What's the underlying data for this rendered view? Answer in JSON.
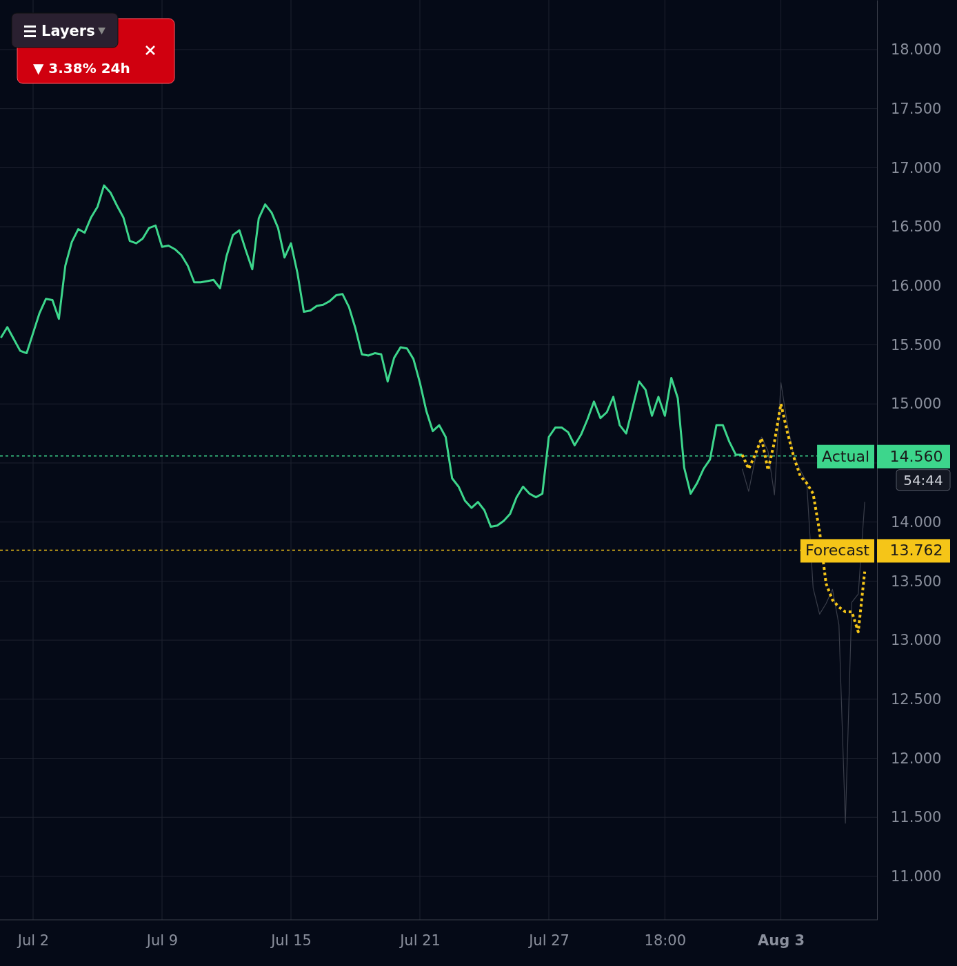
{
  "chart_data": {
    "type": "line",
    "categories": [
      null,
      null,
      null,
      null,
      null,
      "Jul 2",
      null,
      null,
      null,
      null,
      null,
      null,
      null,
      null,
      null,
      null,
      null,
      null,
      null,
      null,
      null,
      null,
      null,
      null,
      null,
      "Jul 9",
      null,
      null,
      null,
      null,
      null,
      null,
      null,
      null,
      null,
      null,
      null,
      null,
      null,
      null,
      null,
      null,
      null,
      null,
      null,
      "Jul 15",
      null,
      null,
      null,
      null,
      null,
      null,
      null,
      null,
      null,
      null,
      null,
      null,
      null,
      null,
      null,
      null,
      null,
      null,
      null,
      "Jul 21",
      null,
      null,
      null,
      null,
      null,
      null,
      null,
      null,
      null,
      null,
      null,
      null,
      null,
      null,
      null,
      null,
      null,
      null,
      null,
      "Jul 27",
      null,
      null,
      null,
      null,
      null,
      null,
      null,
      null,
      null,
      null,
      null,
      null,
      null,
      null,
      null,
      null,
      null,
      "18:00",
      null,
      null,
      null,
      null,
      null,
      null,
      null,
      null,
      null,
      null,
      null,
      null,
      null,
      null,
      null,
      null,
      null,
      "Aug 3",
      null,
      null,
      null,
      null,
      null,
      null,
      null,
      null,
      null,
      null,
      null,
      null,
      null,
      null
    ],
    "ylim": [
      10.632,
      18.42
    ],
    "yticks": [
      {
        "value": 11,
        "label": "11.000"
      },
      {
        "value": 11.5,
        "label": "11.500"
      },
      {
        "value": 12,
        "label": "12.000"
      },
      {
        "value": 12.5,
        "label": "12.500"
      },
      {
        "value": 13,
        "label": "13.000"
      },
      {
        "value": 13.5,
        "label": "13.500"
      },
      {
        "value": 14,
        "label": "14.000"
      },
      {
        "value": 14.5,
        "label": null
      },
      {
        "value": 15,
        "label": "15.000"
      },
      {
        "value": 15.5,
        "label": "15.500"
      },
      {
        "value": 16,
        "label": "16.000"
      },
      {
        "value": 16.5,
        "label": "16.500"
      },
      {
        "value": 17,
        "label": "17.000"
      },
      {
        "value": 17.5,
        "label": "17.500"
      },
      {
        "value": 18,
        "label": "18.000"
      }
    ],
    "grid": true,
    "marker": "none",
    "series": [
      {
        "color": "#3a3e4a",
        "line_style": "solid",
        "values": [
          null,
          null,
          null,
          null,
          null,
          null,
          null,
          null,
          null,
          null,
          null,
          null,
          null,
          null,
          null,
          null,
          null,
          null,
          null,
          null,
          null,
          null,
          null,
          null,
          null,
          null,
          null,
          null,
          null,
          null,
          null,
          null,
          null,
          null,
          null,
          null,
          null,
          null,
          null,
          null,
          null,
          null,
          null,
          null,
          null,
          null,
          null,
          null,
          null,
          null,
          null,
          null,
          null,
          null,
          null,
          null,
          null,
          null,
          null,
          null,
          null,
          null,
          null,
          null,
          null,
          null,
          null,
          null,
          null,
          null,
          null,
          null,
          null,
          null,
          null,
          null,
          null,
          null,
          null,
          null,
          null,
          null,
          null,
          null,
          null,
          null,
          null,
          null,
          null,
          null,
          null,
          null,
          null,
          null,
          null,
          null,
          null,
          null,
          null,
          null,
          null,
          null,
          null,
          null,
          null,
          null,
          null,
          null,
          null,
          null,
          null,
          null,
          null,
          null,
          null,
          14.45,
          14.26,
          14.53,
          14.72,
          14.6,
          14.23,
          15.18,
          14.83,
          14.56,
          14.44,
          14.34,
          13.44,
          13.22,
          13.31,
          13.43,
          13.13,
          11.45,
          13.32,
          13.39,
          14.17,
          null
        ]
      },
      {
        "color": "#3dd68c",
        "line_style": "solid",
        "values": [
          15.56,
          15.65,
          15.55,
          15.45,
          15.43,
          15.6,
          15.77,
          15.89,
          15.88,
          15.72,
          16.17,
          16.37,
          16.48,
          16.45,
          16.58,
          16.67,
          16.85,
          16.79,
          16.68,
          16.58,
          16.38,
          16.36,
          16.4,
          16.49,
          16.51,
          16.33,
          16.34,
          16.31,
          16.26,
          16.17,
          16.03,
          16.03,
          16.04,
          16.05,
          15.98,
          16.25,
          16.43,
          16.47,
          16.3,
          16.14,
          16.57,
          16.69,
          16.62,
          16.49,
          16.24,
          16.36,
          16.11,
          15.78,
          15.79,
          15.83,
          15.84,
          15.87,
          15.92,
          15.93,
          15.82,
          15.64,
          15.42,
          15.41,
          15.43,
          15.42,
          15.19,
          15.39,
          15.48,
          15.47,
          15.38,
          15.18,
          14.94,
          14.77,
          14.82,
          14.72,
          14.37,
          14.3,
          14.18,
          14.12,
          14.17,
          14.1,
          13.96,
          13.97,
          14.01,
          14.07,
          14.21,
          14.3,
          14.24,
          14.21,
          14.24,
          14.72,
          14.8,
          14.8,
          14.76,
          14.65,
          14.74,
          14.87,
          15.02,
          14.88,
          14.93,
          15.06,
          14.82,
          14.75,
          14.97,
          15.19,
          15.12,
          14.9,
          15.06,
          14.9,
          15.22,
          15.05,
          14.46,
          14.24,
          14.33,
          14.45,
          14.53,
          14.82,
          14.82,
          14.68,
          14.57,
          14.57,
          null,
          null,
          null,
          null,
          null,
          null,
          null,
          null,
          null,
          null,
          null,
          null,
          null,
          null,
          null,
          null,
          null,
          null,
          null,
          null
        ]
      },
      {
        "color": "#f5c518",
        "line_style": "dotted",
        "values": [
          null,
          null,
          null,
          null,
          null,
          null,
          null,
          null,
          null,
          null,
          null,
          null,
          null,
          null,
          null,
          null,
          null,
          null,
          null,
          null,
          null,
          null,
          null,
          null,
          null,
          null,
          null,
          null,
          null,
          null,
          null,
          null,
          null,
          null,
          null,
          null,
          null,
          null,
          null,
          null,
          null,
          null,
          null,
          null,
          null,
          null,
          null,
          null,
          null,
          null,
          null,
          null,
          null,
          null,
          null,
          null,
          null,
          null,
          null,
          null,
          null,
          null,
          null,
          null,
          null,
          null,
          null,
          null,
          null,
          null,
          null,
          null,
          null,
          null,
          null,
          null,
          null,
          null,
          null,
          null,
          null,
          null,
          null,
          null,
          null,
          null,
          null,
          null,
          null,
          null,
          null,
          null,
          null,
          null,
          null,
          null,
          null,
          null,
          null,
          null,
          null,
          null,
          null,
          null,
          null,
          null,
          null,
          null,
          null,
          null,
          null,
          null,
          null,
          null,
          null,
          14.57,
          14.45,
          14.57,
          14.71,
          14.44,
          14.68,
          15.0,
          14.76,
          14.55,
          14.39,
          14.33,
          14.24,
          13.92,
          13.48,
          13.34,
          13.28,
          13.24,
          13.24,
          13.07,
          13.58,
          null
        ]
      }
    ],
    "ref_lines": [
      {
        "axis": "y",
        "value": 14.56,
        "label": "Actual",
        "color": "#3dd68c",
        "line_style": "dotted"
      },
      {
        "axis": "y",
        "value": 13.762,
        "label": "Forecast",
        "color": "#f5c518",
        "line_style": "dotted"
      }
    ],
    "annotations": [
      "Layers",
      "▼ 3.38% 24h",
      "54:44",
      "14.560",
      "13.762"
    ]
  }
}
